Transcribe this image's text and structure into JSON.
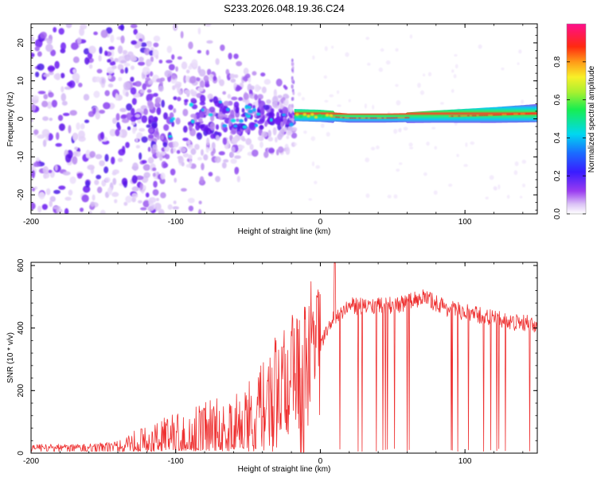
{
  "title": "S233.2026.048.19.36.C24",
  "colors": {
    "snr_line": "#ee3030",
    "axis": "#000000",
    "background": "#ffffff"
  },
  "chart_data": [
    {
      "type": "heatmap",
      "name": "spectrogram",
      "xlabel": "Height of straight line (km)",
      "ylabel": "Frequency (Hz)",
      "xlim": [
        -200,
        150
      ],
      "ylim": [
        -25,
        25
      ],
      "xticks": [
        -200,
        -100,
        0,
        100
      ],
      "yticks": [
        -20,
        -10,
        0,
        10,
        20
      ],
      "xtick_labels": [
        "-200",
        "-100",
        "0",
        "100"
      ],
      "ytick_labels": [
        "-20",
        "-10",
        "0",
        "10",
        "20"
      ],
      "colorbar": {
        "label": "Normalized spectral amplitude",
        "range": [
          0.0,
          1.0
        ],
        "ticks": [
          0.0,
          0.2,
          0.4,
          0.6,
          0.8
        ],
        "tick_labels": [
          "0.0",
          "0.2",
          "0.4",
          "0.6",
          "0.8"
        ],
        "colormap": "white-violet-blue-cyan-green-yellow-orange-red-magenta"
      },
      "features": {
        "noise_region_km": [
          -200,
          -120
        ],
        "transition_region_km": [
          -120,
          -18
        ],
        "narrow_band_region_km": [
          -18,
          150
        ],
        "narrow_band_freq_hz": [
          [
            -18,
            1.0
          ],
          [
            0,
            0.8
          ],
          [
            20,
            0.2
          ],
          [
            40,
            0.2
          ],
          [
            60,
            0.3
          ],
          [
            80,
            0.6
          ],
          [
            100,
            0.8
          ],
          [
            120,
            1.0
          ],
          [
            150,
            1.5
          ]
        ],
        "spike_km": -19
      }
    },
    {
      "type": "line",
      "name": "snr",
      "xlabel": "Height of straight line (km)",
      "ylabel": "SNR (10 * v/v)",
      "xlim": [
        -200,
        150
      ],
      "ylim": [
        0,
        610
      ],
      "xticks": [
        -200,
        -100,
        0,
        100
      ],
      "yticks": [
        0,
        200,
        400,
        600
      ],
      "xtick_labels": [
        "-200",
        "-100",
        "0",
        "100"
      ],
      "ytick_labels": [
        "0",
        "200",
        "400",
        "600"
      ],
      "envelope": {
        "x": [
          -200,
          -160,
          -140,
          -120,
          -100,
          -80,
          -60,
          -40,
          -25,
          -10,
          0,
          10,
          20,
          40,
          60,
          70,
          90,
          110,
          130,
          150
        ],
        "y_center": [
          20,
          22,
          30,
          45,
          70,
          90,
          95,
          150,
          230,
          300,
          340,
          440,
          470,
          470,
          480,
          500,
          460,
          440,
          420,
          410
        ]
      },
      "annotations": [
        "dropouts to ~0 between x=0 and x=150",
        "peak ~610 near x=10"
      ]
    }
  ]
}
